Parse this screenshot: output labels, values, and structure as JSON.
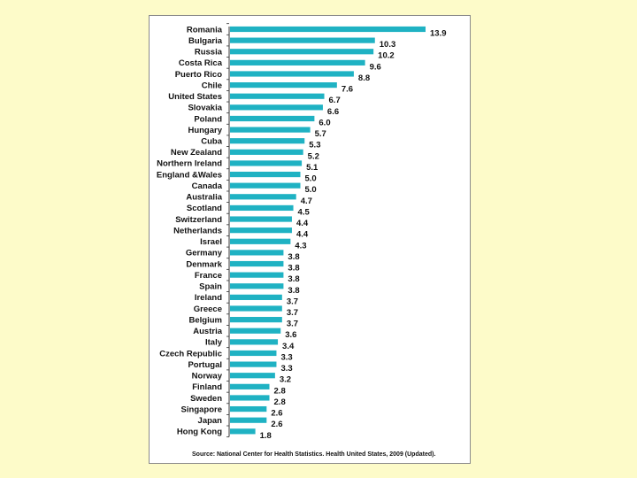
{
  "chart_data": {
    "type": "bar",
    "orientation": "horizontal",
    "categories": [
      "Romania",
      "Bulgaria",
      "Russia",
      "Costa Rica",
      "Puerto Rico",
      "Chile",
      "United States",
      "Slovakia",
      "Poland",
      "Hungary",
      "Cuba",
      "New Zealand",
      "Northern Ireland",
      "England &Wales",
      "Canada",
      "Australia",
      "Scotland",
      "Switzerland",
      "Netherlands",
      "Israel",
      "Germany",
      "Denmark",
      "France",
      "Spain",
      "Ireland",
      "Greece",
      "Belgium",
      "Austria",
      "Italy",
      "Czech Republic",
      "Portugal",
      "Norway",
      "Finland",
      "Sweden",
      "Singapore",
      "Japan",
      "Hong Kong"
    ],
    "values": [
      13.9,
      10.3,
      10.2,
      9.6,
      8.8,
      7.6,
      6.7,
      6.6,
      6.0,
      5.7,
      5.3,
      5.2,
      5.1,
      5.0,
      5.0,
      4.7,
      4.5,
      4.4,
      4.4,
      4.3,
      3.8,
      3.8,
      3.8,
      3.8,
      3.7,
      3.7,
      3.7,
      3.6,
      3.4,
      3.3,
      3.3,
      3.2,
      2.8,
      2.8,
      2.6,
      2.6,
      1.8
    ],
    "value_labels": [
      "13.9",
      "10.3",
      "10.2",
      "9.6",
      "8.8",
      "7.6",
      "6.7",
      "6.6",
      "6.0",
      "5.7",
      "5.3",
      "5.2",
      "5.1",
      "5.0",
      "5.0",
      "4.7",
      "4.5",
      "4.4",
      "4.4",
      "4.3",
      "3.8",
      "3.8",
      "3.8",
      "3.8",
      "3.7",
      "3.7",
      "3.7",
      "3.6",
      "3.4",
      "3.3",
      "3.3",
      "3.2",
      "2.8",
      "2.8",
      "2.6",
      "2.6",
      "1.8"
    ],
    "xlim": [
      0,
      15
    ],
    "bar_color": "#1fb2c3",
    "title": "",
    "xlabel": "",
    "ylabel": ""
  },
  "source": {
    "text": "Source: National Center for Health Statistics. Health United States, 2009",
    "note": "(Updated)."
  },
  "colors": {
    "background": "#fdfbc9",
    "panel": "#ffffff",
    "bar": "#1fb2c3"
  }
}
